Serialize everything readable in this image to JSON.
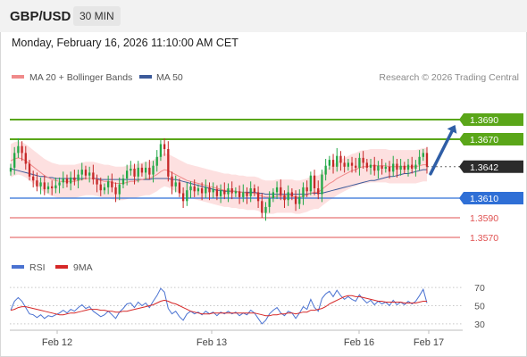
{
  "header": {
    "symbol": "GBP/USD",
    "timeframe": "30 MIN"
  },
  "datetime": "Monday, February 16, 2026 11:10:00 AM CET",
  "watermark": "Research © 2026 Trading Central",
  "colors": {
    "candle_up": "#22a846",
    "candle_down": "#c62828",
    "ma20": "#f08a8a",
    "ma50": "#3c5a9a",
    "band_fill": "#fde0e0",
    "resistance": "#5aa619",
    "support": "#2f6fd6",
    "minor_support": "#e05252",
    "rsi": "#4a72d1",
    "rsi_ma": "#d62828",
    "arrow": "#2f5ea6"
  },
  "chart_data": [
    {
      "type": "candlestick",
      "title": "GBP/USD",
      "timeframe": "30 MIN",
      "x_tick_labels": [
        "Feb 12",
        "Feb 13",
        "Feb 16",
        "Feb 17"
      ],
      "ylim": [
        1.355,
        1.371
      ],
      "legend": [
        {
          "name": "MA 20 + Bollinger Bands",
          "color": "#f08a8a"
        },
        {
          "name": "MA 50",
          "color": "#3c5a9a"
        }
      ],
      "levels": [
        {
          "label": "1.3690",
          "value": 1.369,
          "kind": "resistance"
        },
        {
          "label": "1.3670",
          "value": 1.367,
          "kind": "resistance"
        },
        {
          "label": "1.3642",
          "value": 1.3642,
          "kind": "last"
        },
        {
          "label": "1.3610",
          "value": 1.361,
          "kind": "pivot"
        },
        {
          "label": "1.3590",
          "value": 1.359,
          "kind": "support"
        },
        {
          "label": "1.3570",
          "value": 1.357,
          "kind": "support"
        }
      ],
      "forecast_arrow": {
        "from": 1.3642,
        "to": 1.3689
      },
      "close": [
        1.3641,
        1.3656,
        1.3663,
        1.3656,
        1.3645,
        1.3632,
        1.3628,
        1.3622,
        1.3626,
        1.3619,
        1.3622,
        1.362,
        1.3623,
        1.3626,
        1.363,
        1.3625,
        1.3631,
        1.3628,
        1.3634,
        1.3639,
        1.3633,
        1.3636,
        1.3629,
        1.3624,
        1.3618,
        1.3621,
        1.3627,
        1.3621,
        1.3614,
        1.3624,
        1.363,
        1.3638,
        1.364,
        1.3632,
        1.3641,
        1.3636,
        1.3641,
        1.3634,
        1.3643,
        1.3652,
        1.3665,
        1.366,
        1.3632,
        1.3622,
        1.3626,
        1.3615,
        1.3607,
        1.3618,
        1.3622,
        1.3617,
        1.362,
        1.3615,
        1.3621,
        1.3616,
        1.3619,
        1.3612,
        1.3618,
        1.3614,
        1.362,
        1.3615,
        1.3617,
        1.3611,
        1.3616,
        1.3612,
        1.362,
        1.3616,
        1.3607,
        1.3595,
        1.3601,
        1.361,
        1.3616,
        1.3621,
        1.3613,
        1.3608,
        1.3616,
        1.3612,
        1.3604,
        1.3611,
        1.3621,
        1.3617,
        1.3633,
        1.362,
        1.3614,
        1.3634,
        1.3643,
        1.3649,
        1.3642,
        1.3653,
        1.3646,
        1.3642,
        1.3646,
        1.3643,
        1.3641,
        1.3651,
        1.3646,
        1.3641,
        1.3644,
        1.3638,
        1.3643,
        1.364,
        1.3642,
        1.3637,
        1.3645,
        1.3639,
        1.3643,
        1.3639,
        1.3644,
        1.364,
        1.3644,
        1.3652,
        1.3656,
        1.3642
      ],
      "ma20": [
        1.3648,
        1.365,
        1.3651,
        1.365,
        1.3648,
        1.3645,
        1.3642,
        1.3639,
        1.3636,
        1.3633,
        1.3631,
        1.3629,
        1.3628,
        1.3627,
        1.3627,
        1.3627,
        1.3627,
        1.3627,
        1.3628,
        1.3629,
        1.363,
        1.363,
        1.363,
        1.3629,
        1.3628,
        1.3627,
        1.3627,
        1.3626,
        1.3625,
        1.3625,
        1.3625,
        1.3626,
        1.3627,
        1.3627,
        1.3628,
        1.3629,
        1.363,
        1.363,
        1.3632,
        1.3634,
        1.3637,
        1.3639,
        1.3638,
        1.3636,
        1.3634,
        1.3632,
        1.363,
        1.3628,
        1.3627,
        1.3626,
        1.3625,
        1.3624,
        1.3623,
        1.3622,
        1.3621,
        1.362,
        1.3619,
        1.3618,
        1.3618,
        1.3617,
        1.3617,
        1.3616,
        1.3616,
        1.3615,
        1.3615,
        1.3615,
        1.3614,
        1.3612,
        1.3611,
        1.3611,
        1.3611,
        1.3612,
        1.3612,
        1.3612,
        1.3612,
        1.3612,
        1.3611,
        1.3611,
        1.3612,
        1.3613,
        1.3615,
        1.3616,
        1.3616,
        1.3619,
        1.3622,
        1.3625,
        1.3627,
        1.363,
        1.3632,
        1.3634,
        1.3636,
        1.3638,
        1.3639,
        1.3641,
        1.3642,
        1.3642,
        1.3643,
        1.3643,
        1.3643,
        1.3643,
        1.3643,
        1.3642,
        1.3642,
        1.3642,
        1.3642,
        1.3642,
        1.3642,
        1.3642,
        1.3642,
        1.3643,
        1.3644,
        1.3644
      ],
      "ma50": [
        1.364,
        1.3639,
        1.3638,
        1.3637,
        1.3636,
        1.3635,
        1.3634,
        1.3633,
        1.3632,
        1.3632,
        1.3631,
        1.3631,
        1.363,
        1.363,
        1.363,
        1.363,
        1.363,
        1.363,
        1.363,
        1.363,
        1.363,
        1.363,
        1.363,
        1.363,
        1.3629,
        1.3629,
        1.3629,
        1.3629,
        1.3629,
        1.3629,
        1.3629,
        1.3629,
        1.3629,
        1.3629,
        1.3629,
        1.3629,
        1.3629,
        1.3629,
        1.363,
        1.363,
        1.363,
        1.363,
        1.363,
        1.3629,
        1.3629,
        1.3628,
        1.3627,
        1.3626,
        1.3625,
        1.3624,
        1.3623,
        1.3622,
        1.3621,
        1.362,
        1.3619,
        1.3618,
        1.3618,
        1.3617,
        1.3617,
        1.3617,
        1.3617,
        1.3616,
        1.3616,
        1.3616,
        1.3616,
        1.3616,
        1.3615,
        1.3615,
        1.3614,
        1.3614,
        1.3614,
        1.3614,
        1.3614,
        1.3614,
        1.3614,
        1.3614,
        1.3614,
        1.3614,
        1.3614,
        1.3614,
        1.3615,
        1.3615,
        1.3615,
        1.3615,
        1.3616,
        1.3617,
        1.3618,
        1.3619,
        1.362,
        1.3621,
        1.3622,
        1.3623,
        1.3624,
        1.3625,
        1.3626,
        1.3627,
        1.3628,
        1.3628,
        1.3629,
        1.363,
        1.3631,
        1.3632,
        1.3632,
        1.3633,
        1.3634,
        1.3635,
        1.3635,
        1.3636,
        1.3637,
        1.3638,
        1.3639,
        1.3639
      ]
    },
    {
      "type": "line",
      "title": "RSI",
      "legend": [
        {
          "name": "RSI",
          "color": "#4a72d1"
        },
        {
          "name": "9MA",
          "color": "#d62828"
        }
      ],
      "ylim": [
        25,
        80
      ],
      "y_ticks": [
        70,
        50,
        30
      ],
      "series": [
        {
          "name": "RSI",
          "values": [
            45,
            55,
            59,
            55,
            48,
            41,
            40,
            37,
            40,
            36,
            39,
            38,
            40,
            42,
            45,
            42,
            46,
            44,
            48,
            51,
            47,
            49,
            44,
            41,
            38,
            40,
            44,
            40,
            36,
            43,
            47,
            52,
            53,
            48,
            54,
            50,
            53,
            48,
            55,
            61,
            69,
            65,
            47,
            41,
            44,
            38,
            34,
            41,
            44,
            41,
            43,
            40,
            44,
            41,
            43,
            39,
            43,
            41,
            44,
            41,
            43,
            39,
            42,
            40,
            45,
            42,
            36,
            30,
            34,
            41,
            45,
            48,
            42,
            39,
            44,
            42,
            36,
            42,
            49,
            46,
            57,
            48,
            44,
            58,
            63,
            66,
            60,
            67,
            61,
            57,
            60,
            57,
            55,
            62,
            57,
            53,
            56,
            51,
            55,
            52,
            54,
            50,
            56,
            51,
            54,
            51,
            55,
            52,
            55,
            61,
            68,
            53
          ]
        },
        {
          "name": "9MA",
          "values": [
            45,
            46,
            48,
            49,
            49,
            48,
            47,
            46,
            45,
            44,
            43,
            42,
            41,
            40,
            40,
            41,
            42,
            42,
            43,
            44,
            45,
            46,
            46,
            46,
            45,
            45,
            44,
            44,
            43,
            43,
            44,
            44,
            45,
            46,
            47,
            48,
            49,
            50,
            51,
            53,
            55,
            56,
            55,
            53,
            52,
            50,
            48,
            46,
            44,
            43,
            42,
            41,
            41,
            41,
            42,
            42,
            42,
            42,
            42,
            42,
            42,
            42,
            42,
            42,
            42,
            42,
            41,
            40,
            39,
            39,
            40,
            40,
            41,
            41,
            42,
            42,
            41,
            42,
            43,
            43,
            45,
            45,
            46,
            47,
            49,
            52,
            54,
            56,
            58,
            60,
            61,
            61,
            60,
            60,
            59,
            58,
            57,
            56,
            55,
            55,
            54,
            54,
            54,
            54,
            54,
            53,
            53,
            53,
            53,
            54,
            55,
            55
          ]
        }
      ]
    }
  ]
}
